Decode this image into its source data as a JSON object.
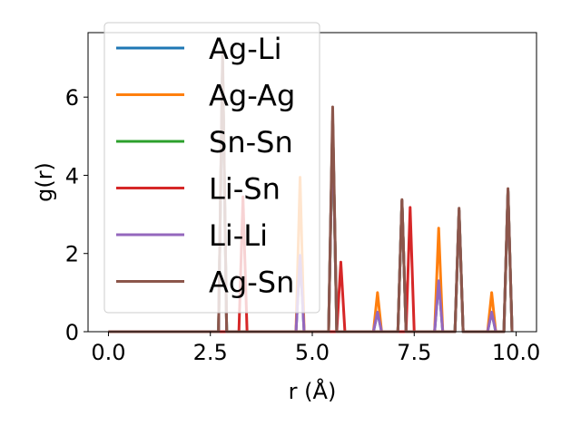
{
  "chart_data": {
    "type": "line",
    "xlabel": "r (Å)",
    "ylabel": "g(r)",
    "xlim": [
      -0.5,
      10.5
    ],
    "ylim": [
      0,
      7.65
    ],
    "xticks": [
      0.0,
      2.5,
      5.0,
      7.5,
      10.0
    ],
    "xtick_labels": [
      "0.0",
      "2.5",
      "5.0",
      "7.5",
      "10.0"
    ],
    "yticks": [
      0,
      2,
      4,
      6
    ],
    "ytick_labels": [
      "0",
      "2",
      "4",
      "6"
    ],
    "grid": false,
    "legend": "upper-left",
    "series": [
      {
        "name": "Ag-Li",
        "color": "#1f77b4",
        "x": [
          0,
          2.7,
          2.8,
          2.9,
          4.6,
          4.7,
          4.8,
          5.4,
          5.5,
          5.6,
          6.5,
          6.6,
          6.7,
          7.1,
          7.2,
          7.3,
          8.0,
          8.1,
          8.2,
          8.5,
          8.6,
          8.7,
          9.3,
          9.4,
          9.5,
          9.7,
          9.8,
          9.9
        ],
        "y": [
          0,
          0,
          6.9,
          0,
          0,
          1.95,
          0,
          0,
          5.4,
          0,
          0,
          0.5,
          0,
          0,
          3.35,
          0,
          0,
          1.3,
          0,
          0,
          3.1,
          0,
          0,
          0.5,
          0,
          0,
          3.6,
          0
        ]
      },
      {
        "name": "Ag-Ag",
        "color": "#ff7f0e",
        "x": [
          0,
          2.7,
          2.8,
          2.9,
          4.6,
          4.7,
          4.8,
          5.4,
          5.5,
          5.6,
          6.5,
          6.6,
          6.7,
          7.1,
          7.2,
          7.3,
          8.0,
          8.1,
          8.2,
          8.5,
          8.6,
          8.7,
          9.3,
          9.4,
          9.5,
          9.7,
          9.8,
          9.9
        ],
        "y": [
          0,
          0,
          6.9,
          0,
          0,
          3.95,
          0,
          0,
          5.4,
          0,
          0,
          1.0,
          0,
          0,
          3.35,
          0,
          0,
          2.65,
          0,
          0,
          3.1,
          0,
          0,
          1.0,
          0,
          0,
          3.6,
          0
        ]
      },
      {
        "name": "Sn-Sn",
        "color": "#2ca02c",
        "x": [
          0,
          2.7,
          2.8,
          2.9,
          5.4,
          5.5,
          5.6,
          7.1,
          7.2,
          7.3,
          8.5,
          8.6,
          8.7,
          9.7,
          9.8,
          9.9
        ],
        "y": [
          0,
          0,
          6.9,
          0,
          0,
          5.4,
          0,
          0,
          3.35,
          0,
          0,
          3.1,
          0,
          0,
          3.6,
          0
        ]
      },
      {
        "name": "Li-Sn",
        "color": "#d62728",
        "x": [
          0,
          3.2,
          3.3,
          3.4,
          5.6,
          5.7,
          5.8,
          7.3,
          7.4,
          7.5
        ],
        "y": [
          0,
          0,
          3.45,
          0,
          0,
          1.78,
          0,
          0,
          3.18,
          0
        ]
      },
      {
        "name": "Li-Li",
        "color": "#9467bd",
        "x": [
          0,
          2.7,
          2.8,
          2.9,
          4.6,
          4.7,
          4.8,
          5.4,
          5.5,
          5.6,
          6.5,
          6.6,
          6.7,
          7.1,
          7.2,
          7.3,
          8.0,
          8.1,
          8.2,
          8.5,
          8.6,
          8.7,
          9.3,
          9.4,
          9.5,
          9.7,
          9.8,
          9.9
        ],
        "y": [
          0,
          0,
          6.9,
          0,
          0,
          1.95,
          0,
          0,
          5.4,
          0,
          0,
          0.5,
          0,
          0,
          3.35,
          0,
          0,
          1.3,
          0,
          0,
          3.1,
          0,
          0,
          0.5,
          0,
          0,
          3.6,
          0
        ]
      },
      {
        "name": "Ag-Sn",
        "color": "#8c564b",
        "x": [
          0,
          2.7,
          2.8,
          2.9,
          5.4,
          5.5,
          5.6,
          7.1,
          7.2,
          7.3,
          8.5,
          8.6,
          8.7,
          9.7,
          9.8,
          9.9
        ],
        "y": [
          0,
          0,
          7.2,
          0,
          0,
          5.75,
          0,
          0,
          3.38,
          0,
          0,
          3.16,
          0,
          0,
          3.66,
          0
        ]
      }
    ]
  }
}
